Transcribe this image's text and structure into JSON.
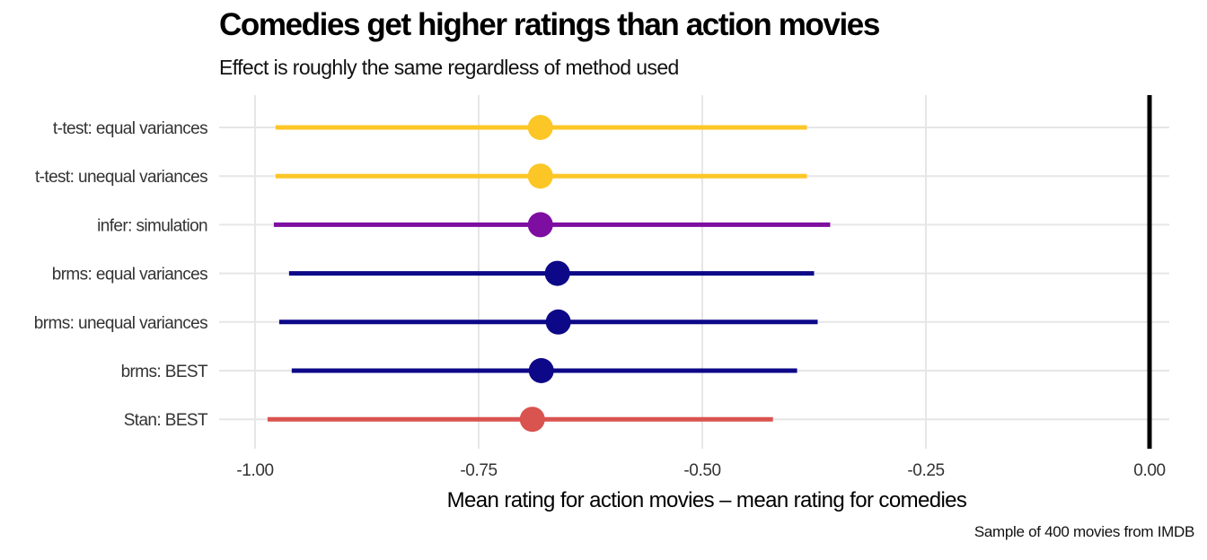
{
  "chart_data": {
    "type": "pointrange",
    "title": "Comedies get higher ratings than action movies",
    "subtitle": "Effect is roughly the same regardless of method used",
    "xlabel": "Mean rating for action movies – mean rating for comedies",
    "ylabel": "",
    "caption": "Sample of 400 movies from IMDB",
    "xlim": [
      -1.04,
      0.03
    ],
    "xticks": [
      -1.0,
      -0.75,
      -0.5,
      -0.25,
      0.0
    ],
    "xtick_labels": [
      "-1.00",
      "-0.75",
      "-0.50",
      "-0.25",
      "0.00"
    ],
    "reference_line": 0.0,
    "grid": true,
    "legend": "none",
    "rows": [
      {
        "label": "t-test: equal variances",
        "estimate": -0.681,
        "low": -0.977,
        "high": -0.383,
        "color": "#FCC627"
      },
      {
        "label": "t-test: unequal variances",
        "estimate": -0.681,
        "low": -0.977,
        "high": -0.383,
        "color": "#FCC627"
      },
      {
        "label": "infer: simulation",
        "estimate": -0.681,
        "low": -0.979,
        "high": -0.357,
        "color": "#7E0DA1"
      },
      {
        "label": "brms: equal variances",
        "estimate": -0.662,
        "low": -0.962,
        "high": -0.375,
        "color": "#0D0887"
      },
      {
        "label": "brms: unequal variances",
        "estimate": -0.661,
        "low": -0.973,
        "high": -0.371,
        "color": "#0D0887"
      },
      {
        "label": "brms: BEST",
        "estimate": -0.68,
        "low": -0.959,
        "high": -0.394,
        "color": "#0D0887"
      },
      {
        "label": "Stan: BEST",
        "estimate": -0.69,
        "low": -0.986,
        "high": -0.421,
        "color": "#D9534F"
      }
    ]
  }
}
